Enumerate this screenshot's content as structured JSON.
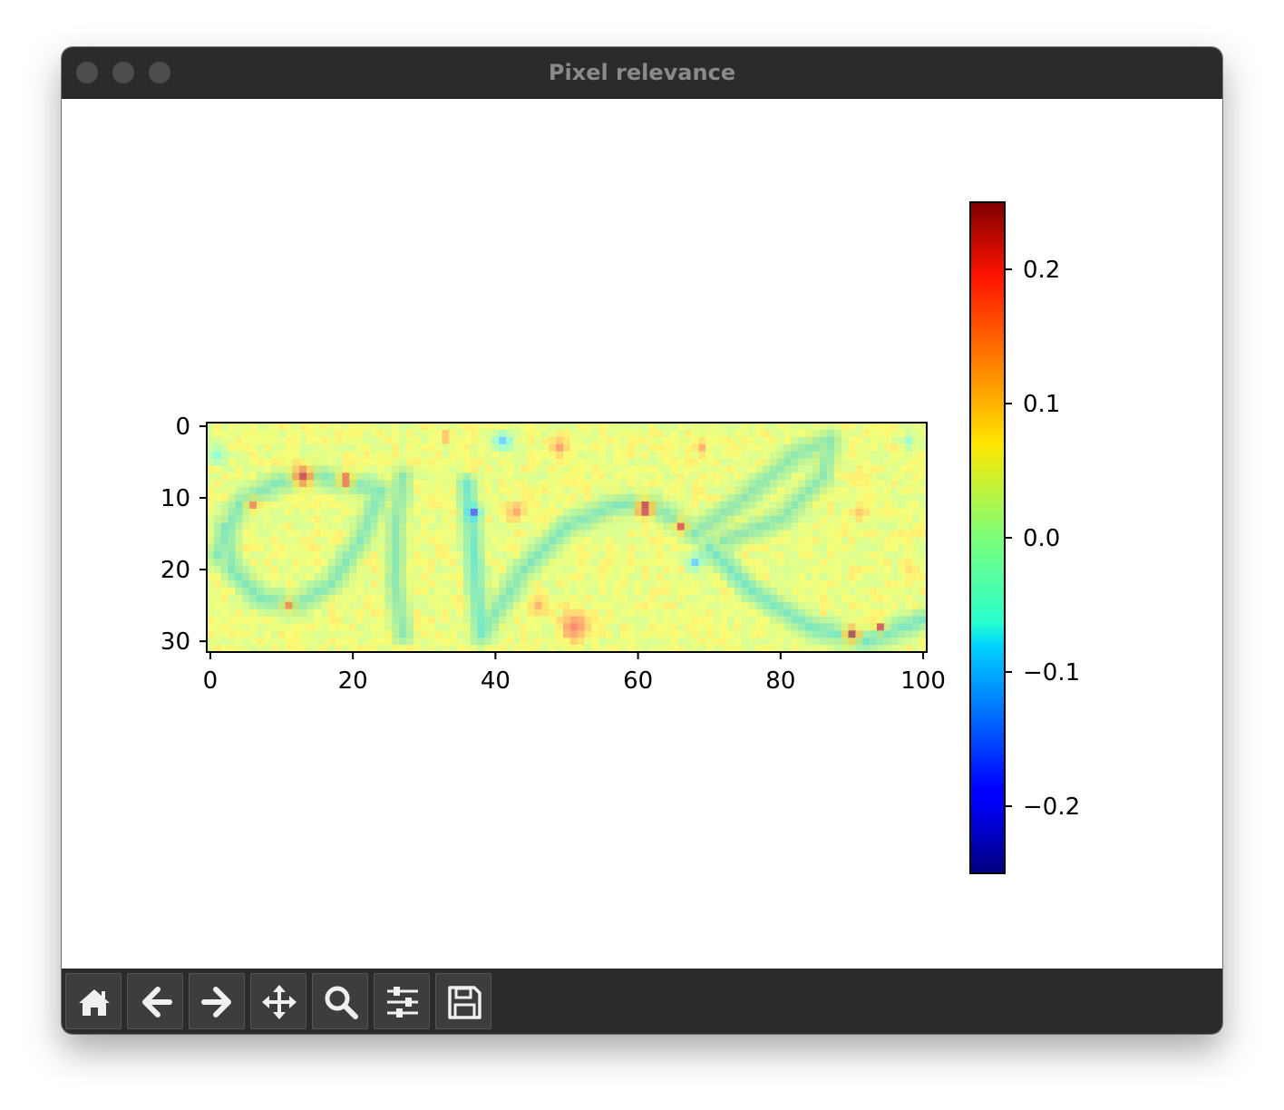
{
  "window": {
    "title": "Pixel relevance"
  },
  "toolbar": {
    "items": [
      {
        "name": "home",
        "icon": "home-icon"
      },
      {
        "name": "back",
        "icon": "arrow-left-icon"
      },
      {
        "name": "forward",
        "icon": "arrow-right-icon"
      },
      {
        "name": "pan",
        "icon": "move-icon"
      },
      {
        "name": "zoom",
        "icon": "magnifier-icon"
      },
      {
        "name": "configure-subplots",
        "icon": "sliders-icon"
      },
      {
        "name": "save",
        "icon": "floppy-disk-icon"
      }
    ]
  },
  "colors": {
    "titlebar": "#2b2b2b",
    "toolbar": "#2b2b2b",
    "tool_button": "#3d3d3d",
    "colormap": "jet"
  },
  "chart_data": {
    "type": "heatmap",
    "title": "",
    "xlabel": "",
    "ylabel": "",
    "xlim": [
      -0.5,
      100.5
    ],
    "ylim": [
      31.5,
      -0.5
    ],
    "x_ticks": [
      0,
      20,
      40,
      60,
      80,
      100
    ],
    "x_tick_labels": [
      "0",
      "20",
      "40",
      "60",
      "80",
      "100"
    ],
    "y_ticks": [
      0,
      10,
      20,
      30
    ],
    "y_tick_labels": [
      "0",
      "10",
      "20",
      "30"
    ],
    "colorbar": {
      "vmin": -0.25,
      "vmax": 0.25,
      "ticks": [
        0.2,
        0.1,
        0.0,
        -0.1,
        -0.2
      ],
      "tick_labels": [
        "0.2",
        "0.1",
        "0.0",
        "−0.1",
        "−0.2"
      ],
      "colormap": "jet"
    },
    "image": {
      "rows": 32,
      "cols": 101,
      "description_of_content": "handwritten word 'ane' overlaid with relevance heatmap",
      "background_value": 0.06,
      "strokes": [
        {
          "points": [
            [
              1,
              18
            ],
            [
              4,
              11
            ],
            [
              9,
              8
            ],
            [
              15,
              7
            ],
            [
              20,
              8
            ],
            [
              24,
              9
            ]
          ],
          "value": -0.03,
          "width": 2.4
        },
        {
          "points": [
            [
              24,
              9
            ],
            [
              21,
              16
            ],
            [
              17,
              22
            ],
            [
              12,
              25
            ],
            [
              7,
              24
            ],
            [
              3,
              20
            ],
            [
              2,
              14
            ]
          ],
          "value": -0.03,
          "width": 2.4
        },
        {
          "points": [
            [
              27,
              7
            ],
            [
              26,
              14
            ],
            [
              26,
              22
            ],
            [
              27,
              29
            ]
          ],
          "value": -0.02,
          "width": 2.2
        },
        {
          "points": [
            [
              36,
              8
            ],
            [
              37,
              18
            ],
            [
              38,
              29
            ]
          ],
          "value": -0.05,
          "width": 2.2
        },
        {
          "points": [
            [
              38,
              29
            ],
            [
              44,
              20
            ],
            [
              50,
              14
            ],
            [
              57,
              11
            ],
            [
              62,
              11
            ],
            [
              68,
              15
            ]
          ],
          "value": -0.03,
          "width": 2.4
        },
        {
          "points": [
            [
              68,
              15
            ],
            [
              75,
              10
            ],
            [
              82,
              4
            ],
            [
              87,
              2
            ],
            [
              86,
              7
            ],
            [
              80,
              13
            ],
            [
              72,
              16
            ]
          ],
          "value": -0.02,
          "width": 2.4
        },
        {
          "points": [
            [
              70,
              17
            ],
            [
              76,
              23
            ],
            [
              84,
              28
            ],
            [
              92,
              30
            ],
            [
              100,
              27
            ]
          ],
          "value": -0.04,
          "width": 2.4
        }
      ],
      "hotspots": [
        {
          "x": 13,
          "y": 7,
          "r": 3.0,
          "value": 0.22
        },
        {
          "x": 19,
          "y": 7.5,
          "r": 2.2,
          "value": 0.2
        },
        {
          "x": 6,
          "y": 11,
          "r": 2.0,
          "value": 0.16
        },
        {
          "x": 11,
          "y": 25,
          "r": 2.0,
          "value": 0.15
        },
        {
          "x": 49,
          "y": 3,
          "r": 2.5,
          "value": 0.16
        },
        {
          "x": 33,
          "y": 1.5,
          "r": 1.8,
          "value": 0.14
        },
        {
          "x": 51,
          "y": 28,
          "r": 4.0,
          "value": 0.18
        },
        {
          "x": 46,
          "y": 25,
          "r": 2.5,
          "value": 0.14
        },
        {
          "x": 43,
          "y": 12,
          "r": 2.5,
          "value": 0.15
        },
        {
          "x": 61,
          "y": 11.5,
          "r": 2.6,
          "value": 0.24
        },
        {
          "x": 66,
          "y": 14,
          "r": 2.0,
          "value": 0.2
        },
        {
          "x": 69,
          "y": 3,
          "r": 1.8,
          "value": 0.14
        },
        {
          "x": 90,
          "y": 29,
          "r": 2.2,
          "value": 0.25
        },
        {
          "x": 94,
          "y": 28,
          "r": 1.6,
          "value": 0.22
        },
        {
          "x": 91,
          "y": 12,
          "r": 2.2,
          "value": 0.12
        },
        {
          "x": 98,
          "y": 20,
          "r": 1.8,
          "value": 0.1
        }
      ],
      "coldspots": [
        {
          "x": 41,
          "y": 2,
          "r": 2.6,
          "value": -0.1
        },
        {
          "x": 37,
          "y": 12,
          "r": 1.8,
          "value": -0.17
        },
        {
          "x": 68,
          "y": 19,
          "r": 2.2,
          "value": -0.1
        },
        {
          "x": 1,
          "y": 4,
          "r": 2.5,
          "value": -0.04
        },
        {
          "x": 98,
          "y": 2,
          "r": 2.0,
          "value": -0.03
        }
      ]
    }
  }
}
